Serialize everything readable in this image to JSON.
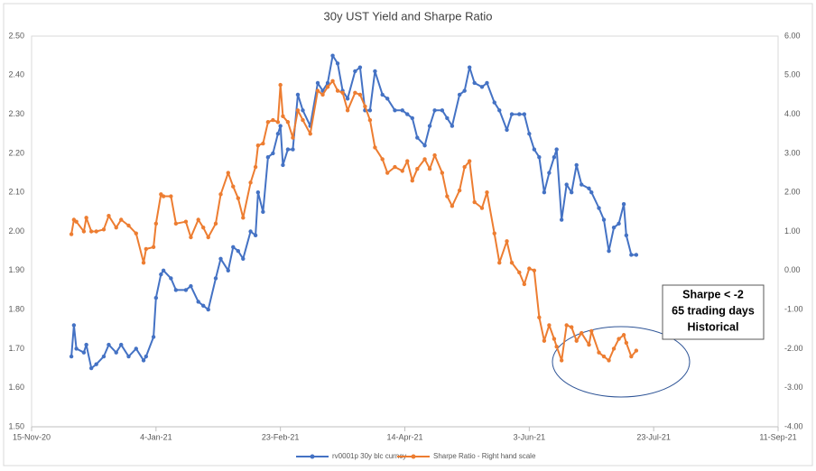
{
  "chart_data": {
    "type": "line",
    "title": "30y UST Yield and Sharpe Ratio",
    "x": [
      "2020-12-01",
      "2020-12-02",
      "2020-12-03",
      "2020-12-06",
      "2020-12-07",
      "2020-12-09",
      "2020-12-11",
      "2020-12-14",
      "2020-12-16",
      "2020-12-19",
      "2020-12-21",
      "2020-12-24",
      "2020-12-27",
      "2020-12-30",
      "2020-12-31",
      "2021-01-03",
      "2021-01-04",
      "2021-01-06",
      "2021-01-07",
      "2021-01-10",
      "2021-01-12",
      "2021-01-16",
      "2021-01-18",
      "2021-01-21",
      "2021-01-23",
      "2021-01-25",
      "2021-01-28",
      "2021-01-30",
      "2021-02-02",
      "2021-02-04",
      "2021-02-06",
      "2021-02-08",
      "2021-02-11",
      "2021-02-13",
      "2021-02-14",
      "2021-02-16",
      "2021-02-18",
      "2021-02-20",
      "2021-02-22",
      "2021-02-23",
      "2021-02-24",
      "2021-02-26",
      "2021-02-28",
      "2021-03-02",
      "2021-03-04",
      "2021-03-07",
      "2021-03-10",
      "2021-03-12",
      "2021-03-14",
      "2021-03-16",
      "2021-03-18",
      "2021-03-20",
      "2021-03-22",
      "2021-03-25",
      "2021-03-27",
      "2021-03-29",
      "2021-03-31",
      "2021-04-02",
      "2021-04-05",
      "2021-04-07",
      "2021-04-10",
      "2021-04-13",
      "2021-04-15",
      "2021-04-17",
      "2021-04-19",
      "2021-04-22",
      "2021-04-24",
      "2021-04-26",
      "2021-04-29",
      "2021-05-01",
      "2021-05-03",
      "2021-05-06",
      "2021-05-08",
      "2021-05-10",
      "2021-05-12",
      "2021-05-15",
      "2021-05-17",
      "2021-05-20",
      "2021-05-22",
      "2021-05-25",
      "2021-05-27",
      "2021-05-30",
      "2021-06-01",
      "2021-06-03",
      "2021-06-05",
      "2021-06-07",
      "2021-06-09",
      "2021-06-11",
      "2021-06-13",
      "2021-06-14",
      "2021-06-16",
      "2021-06-18",
      "2021-06-20",
      "2021-06-22",
      "2021-06-24",
      "2021-06-27",
      "2021-06-28",
      "2021-07-01",
      "2021-07-03",
      "2021-07-05",
      "2021-07-07",
      "2021-07-09",
      "2021-07-11",
      "2021-07-12",
      "2021-07-14",
      "2021-07-16"
    ],
    "series": [
      {
        "name": "rv0001p 30y blc curncy",
        "color": "#4472c4",
        "axis": "y",
        "values": [
          1.68,
          1.76,
          1.7,
          1.69,
          1.71,
          1.65,
          1.66,
          1.68,
          1.71,
          1.69,
          1.71,
          1.68,
          1.7,
          1.67,
          1.68,
          1.73,
          1.83,
          1.89,
          1.9,
          1.88,
          1.85,
          1.85,
          1.86,
          1.82,
          1.81,
          1.8,
          1.88,
          1.93,
          1.9,
          1.96,
          1.95,
          1.93,
          2.0,
          1.99,
          2.1,
          2.05,
          2.19,
          2.2,
          2.25,
          2.27,
          2.17,
          2.21,
          2.21,
          2.35,
          2.31,
          2.27,
          2.38,
          2.36,
          2.38,
          2.45,
          2.43,
          2.36,
          2.34,
          2.41,
          2.42,
          2.31,
          2.31,
          2.41,
          2.35,
          2.34,
          2.31,
          2.31,
          2.3,
          2.29,
          2.24,
          2.22,
          2.27,
          2.31,
          2.31,
          2.29,
          2.27,
          2.35,
          2.36,
          2.42,
          2.38,
          2.37,
          2.38,
          2.33,
          2.31,
          2.26,
          2.3,
          2.3,
          2.3,
          2.25,
          2.21,
          2.19,
          2.1,
          2.15,
          2.19,
          2.21,
          2.03,
          2.12,
          2.1,
          2.17,
          2.12,
          2.11,
          2.1,
          2.06,
          2.03,
          1.95,
          2.01,
          2.02,
          2.07,
          1.99,
          1.94,
          1.94
        ]
      },
      {
        "name": "Sharpe Ratio - Right hand scale",
        "color": "#ed7d31",
        "axis": "y2",
        "values": [
          0.93,
          1.3,
          1.25,
          1.0,
          1.35,
          1.0,
          1.0,
          1.05,
          1.4,
          1.1,
          1.3,
          1.15,
          0.95,
          0.2,
          0.55,
          0.6,
          1.2,
          1.95,
          1.9,
          1.9,
          1.2,
          1.25,
          0.85,
          1.3,
          1.1,
          0.85,
          1.2,
          1.95,
          2.5,
          2.15,
          1.85,
          1.35,
          2.25,
          2.65,
          3.2,
          3.25,
          3.8,
          3.85,
          3.8,
          4.75,
          3.95,
          3.8,
          3.4,
          4.1,
          3.85,
          3.5,
          4.6,
          4.5,
          4.7,
          4.85,
          4.6,
          4.55,
          4.1,
          4.55,
          4.5,
          4.2,
          3.85,
          3.15,
          2.85,
          2.5,
          2.65,
          2.55,
          2.8,
          2.3,
          2.6,
          2.85,
          2.6,
          2.95,
          2.5,
          1.9,
          1.65,
          2.05,
          2.65,
          2.8,
          1.75,
          1.6,
          2.0,
          0.95,
          0.2,
          0.75,
          0.2,
          -0.05,
          -0.35,
          0.05,
          0.0,
          -1.2,
          -1.8,
          -1.4,
          -1.75,
          -1.95,
          -2.3,
          -1.4,
          -1.45,
          -1.8,
          -1.6,
          -1.9,
          -1.55,
          -2.1,
          -2.2,
          -2.3,
          -2.0,
          -1.75,
          -1.65,
          -1.85,
          -2.2,
          -2.05
        ]
      }
    ],
    "xlim": [
      "2020-11-15",
      "2021-09-11"
    ],
    "xticks": [
      {
        "value": "2020-11-15",
        "label": "15-Nov-20"
      },
      {
        "value": "2021-01-04",
        "label": "4-Jan-21"
      },
      {
        "value": "2021-02-23",
        "label": "23-Feb-21"
      },
      {
        "value": "2021-04-14",
        "label": "14-Apr-21"
      },
      {
        "value": "2021-06-03",
        "label": "3-Jun-21"
      },
      {
        "value": "2021-07-23",
        "label": "23-Jul-21"
      },
      {
        "value": "2021-09-11",
        "label": "11-Sep-21"
      }
    ],
    "ylim": [
      1.5,
      2.5
    ],
    "yticks": [
      {
        "value": 1.5,
        "label": "1.50"
      },
      {
        "value": 1.6,
        "label": "1.60"
      },
      {
        "value": 1.7,
        "label": "1.70"
      },
      {
        "value": 1.8,
        "label": "1.80"
      },
      {
        "value": 1.9,
        "label": "1.90"
      },
      {
        "value": 2.0,
        "label": "2.00"
      },
      {
        "value": 2.1,
        "label": "2.10"
      },
      {
        "value": 2.2,
        "label": "2.20"
      },
      {
        "value": 2.3,
        "label": "2.30"
      },
      {
        "value": 2.4,
        "label": "2.40"
      },
      {
        "value": 2.5,
        "label": "2.50"
      }
    ],
    "y2lim": [
      -4,
      6
    ],
    "y2ticks": [
      {
        "value": -4,
        "label": "-4.00"
      },
      {
        "value": -3,
        "label": "-3.00"
      },
      {
        "value": -2,
        "label": "-2.00"
      },
      {
        "value": -1,
        "label": "-1.00"
      },
      {
        "value": 0,
        "label": "0.00"
      },
      {
        "value": 1,
        "label": "1.00"
      },
      {
        "value": 2,
        "label": "2.00"
      },
      {
        "value": 3,
        "label": "3.00"
      },
      {
        "value": 4,
        "label": "4.00"
      },
      {
        "value": 5,
        "label": "5.00"
      },
      {
        "value": 6,
        "label": "6.00"
      }
    ],
    "annotations": [
      "Sharpe < -2",
      "65 trading days",
      "Historical"
    ],
    "legend": "bottom",
    "grid": false
  }
}
